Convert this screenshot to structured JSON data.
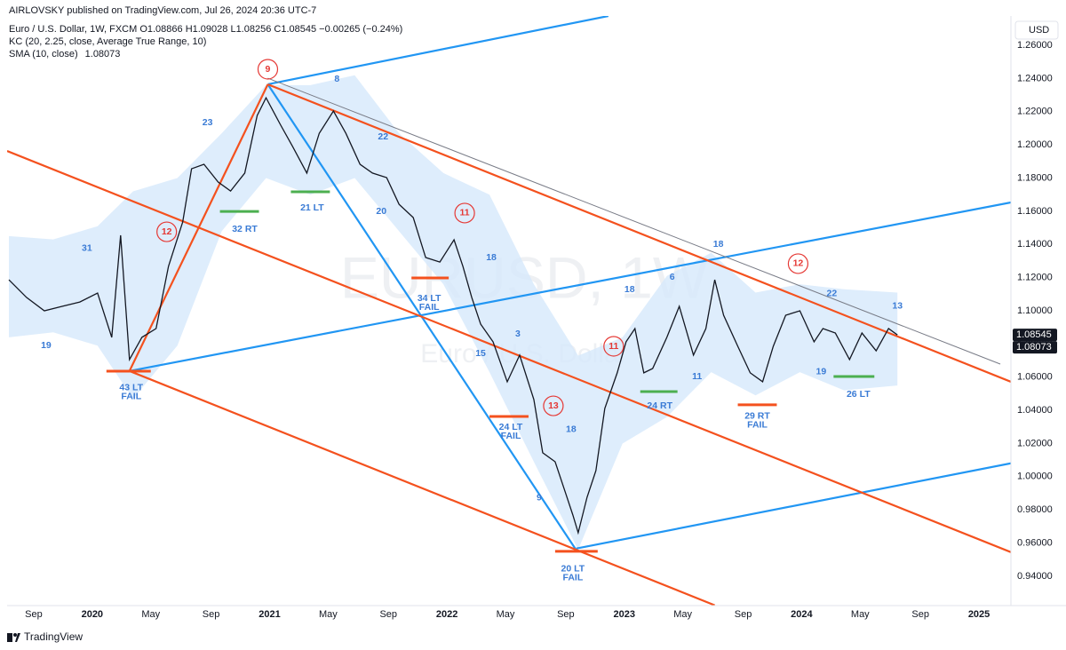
{
  "header": {
    "published": "AIRLOVSKY published on TradingView.com, Jul 26, 2024 20:36 UTC-7",
    "symbol_line": "Euro / U.S. Dollar, 1W, FXCM  O1.08866 H1.09028 L1.08256 C1.08545 −0.00265 (−0.24%)",
    "kc_line": "KC (20, 2.25, close, Average True Range, 10)",
    "sma_line": "SMA (10, close)"
  },
  "footer": "TradingView",
  "chart_data": {
    "type": "line",
    "watermark": {
      "symbol": "EURUSD, 1W",
      "description": "Euro / U.S. Dollar"
    },
    "currency": "USD",
    "sma_last": 1.08073,
    "xlim": [
      2019.52,
      2025.18
    ],
    "ylim": [
      0.9223,
      1.2777
    ],
    "grid": false,
    "xticks": [
      {
        "value": 2019.67,
        "label": "Sep"
      },
      2020,
      {
        "value": 2020.33,
        "label": "May"
      },
      {
        "value": 2020.67,
        "label": "Sep"
      },
      2021,
      {
        "value": 2021.33,
        "label": "May"
      },
      {
        "value": 2021.67,
        "label": "Sep"
      },
      2022,
      {
        "value": 2022.33,
        "label": "May"
      },
      {
        "value": 2022.67,
        "label": "Sep"
      },
      2023,
      {
        "value": 2023.33,
        "label": "May"
      },
      {
        "value": 2023.67,
        "label": "Sep"
      },
      2024,
      {
        "value": 2024.33,
        "label": "May"
      },
      {
        "value": 2024.67,
        "label": "Sep"
      },
      2025
    ],
    "yticks": [
      {
        "value": 0.94,
        "label": "0.94000"
      },
      {
        "value": 0.96,
        "label": "0.96000"
      },
      {
        "value": 0.98,
        "label": "0.98000"
      },
      {
        "value": 1.0,
        "label": "1.00000"
      },
      {
        "value": 1.02,
        "label": "1.02000"
      },
      {
        "value": 1.04,
        "label": "1.04000"
      },
      {
        "value": 1.06,
        "label": "1.06000"
      },
      {
        "value": 1.08,
        "label": "1.08000"
      },
      {
        "value": 1.1,
        "label": "1.10000"
      },
      {
        "value": 1.12,
        "label": "1.12000"
      },
      {
        "value": 1.14,
        "label": "1.14000"
      },
      {
        "value": 1.16,
        "label": "1.16000"
      },
      {
        "value": 1.18,
        "label": "1.18000"
      },
      {
        "value": 1.2,
        "label": "1.20000"
      },
      {
        "value": 1.22,
        "label": "1.22000"
      },
      {
        "value": 1.24,
        "label": "1.24000"
      },
      {
        "value": 1.26,
        "label": "1.26000"
      }
    ],
    "x": [
      2019.53,
      2019.63,
      2019.73,
      2019.83,
      2019.93,
      2020.03,
      2020.11,
      2020.16,
      2020.21,
      2020.28,
      2020.36,
      2020.43,
      2020.51,
      2020.56,
      2020.63,
      2020.71,
      2020.78,
      2020.86,
      2020.93,
      2020.98,
      2021.06,
      2021.13,
      2021.21,
      2021.28,
      2021.36,
      2021.43,
      2021.51,
      2021.58,
      2021.66,
      2021.73,
      2021.81,
      2021.88,
      2021.96,
      2022.04,
      2022.09,
      2022.14,
      2022.19,
      2022.26,
      2022.34,
      2022.41,
      2022.49,
      2022.54,
      2022.61,
      2022.66,
      2022.71,
      2022.74,
      2022.79,
      2022.84,
      2022.89,
      2022.96,
      2023.01,
      2023.06,
      2023.11,
      2023.16,
      2023.24,
      2023.31,
      2023.39,
      2023.46,
      2023.51,
      2023.56,
      2023.64,
      2023.71,
      2023.78,
      2023.84,
      2023.91,
      2023.99,
      2024.07,
      2024.12,
      2024.19,
      2024.27,
      2024.34,
      2024.42,
      2024.49,
      2024.54
    ],
    "series": [
      {
        "color": "#131722",
        "values": [
          1.1187,
          1.108,
          1.1,
          1.1027,
          1.1053,
          1.1107,
          1.084,
          1.1455,
          1.0706,
          1.084,
          1.0893,
          1.1268,
          1.1535,
          1.1856,
          1.1883,
          1.1776,
          1.1722,
          1.183,
          1.2177,
          1.2284,
          1.2124,
          1.199,
          1.183,
          1.207,
          1.2204,
          1.207,
          1.1883,
          1.183,
          1.1803,
          1.1642,
          1.1562,
          1.1321,
          1.1294,
          1.1428,
          1.1268,
          1.108,
          1.092,
          1.0813,
          1.0572,
          1.0733,
          1.0465,
          1.0144,
          1.009,
          0.993,
          0.9769,
          0.9662,
          0.9876,
          1.0037,
          1.0411,
          1.0626,
          1.0813,
          1.0893,
          1.0626,
          1.0652,
          1.084,
          1.1027,
          1.0733,
          1.0893,
          1.1187,
          1.0973,
          1.0786,
          1.0626,
          1.0572,
          1.0786,
          1.0973,
          1.1,
          1.0813,
          1.0893,
          1.0866,
          1.0706,
          1.0866,
          1.0759,
          1.0893,
          1.08545
        ]
      }
    ],
    "kc": {
      "color": "#d6e9fb",
      "x": [
        2019.53,
        2019.78,
        2020.03,
        2020.23,
        2020.48,
        2020.73,
        2020.98,
        2021.23,
        2021.48,
        2021.73,
        2021.98,
        2022.24,
        2022.49,
        2022.74,
        2022.99,
        2023.24,
        2023.49,
        2023.74,
        2023.99,
        2024.24,
        2024.54
      ],
      "upper": [
        1.145,
        1.143,
        1.151,
        1.172,
        1.18,
        1.207,
        1.236,
        1.236,
        1.242,
        1.207,
        1.183,
        1.17,
        1.116,
        1.073,
        1.084,
        1.121,
        1.135,
        1.111,
        1.116,
        1.113,
        1.111
      ],
      "lower": [
        1.084,
        1.087,
        1.079,
        1.047,
        1.079,
        1.148,
        1.18,
        1.17,
        1.18,
        1.148,
        1.116,
        1.063,
        1.009,
        0.956,
        1.02,
        1.036,
        1.063,
        1.049,
        1.063,
        1.052,
        1.055
      ]
    },
    "drawings": [
      {
        "color": "#2196f3",
        "x": [
          2020.99,
          2022.91
        ],
        "y": [
          1.2365,
          1.2777
        ]
      },
      {
        "color": "#2196f3",
        "x": [
          2020.21,
          2025.18
        ],
        "y": [
          1.0637,
          1.1653
        ]
      },
      {
        "color": "#2196f3",
        "x": [
          2020.99,
          2022.73
        ],
        "y": [
          1.2365,
          0.9556
        ]
      },
      {
        "color": "#2196f3",
        "x": [
          2022.73,
          2025.18
        ],
        "y": [
          0.9567,
          1.0081
        ]
      },
      {
        "color": "#f4511e",
        "x": [
          2020.21,
          2020.99
        ],
        "y": [
          1.0637,
          1.2365
        ]
      },
      {
        "color": "#f4511e",
        "x": [
          2020.99,
          2025.18
        ],
        "y": [
          1.2365,
          1.0572
        ]
      },
      {
        "color": "#f4511e",
        "x": [
          2019.52,
          2025.18
        ],
        "y": [
          1.1963,
          0.9545
        ]
      },
      {
        "color": "#f4511e",
        "x": [
          2020.21,
          2023.51
        ],
        "y": [
          1.0637,
          0.9225
        ]
      }
    ],
    "guide": {
      "color": "#787b86",
      "x": [
        2020.99,
        2025.12
      ],
      "y": [
        1.2402,
        1.0679
      ]
    },
    "levels": [
      {
        "color": "#f4511e",
        "x": [
          2020.08,
          2020.33
        ],
        "y": 1.0636
      },
      {
        "color": "#4caf50",
        "x": [
          2020.72,
          2020.94
        ],
        "y": 1.1599
      },
      {
        "color": "#4caf50",
        "x": [
          2021.12,
          2021.34
        ],
        "y": 1.1717
      },
      {
        "color": "#f4511e",
        "x": [
          2021.8,
          2022.01
        ],
        "y": 1.1198
      },
      {
        "color": "#f4511e",
        "x": [
          2022.24,
          2022.46
        ],
        "y": 1.0363
      },
      {
        "color": "#f4511e",
        "x": [
          2022.61,
          2022.85
        ],
        "y": 0.955
      },
      {
        "color": "#4caf50",
        "x": [
          2023.09,
          2023.3
        ],
        "y": 1.0513
      },
      {
        "color": "#f4511e",
        "x": [
          2023.64,
          2023.86
        ],
        "y": 1.0433
      },
      {
        "color": "#4caf50",
        "x": [
          2024.18,
          2024.41
        ],
        "y": 1.0604
      }
    ],
    "annotation_color": "#3a7bd5",
    "circle_color": "#e53935",
    "annotations": [
      {
        "text": "9",
        "x": 2020.99,
        "y": 1.2456,
        "circled": true
      },
      {
        "text": "12",
        "x": 2020.42,
        "y": 1.1476,
        "circled": true
      },
      {
        "text": "11",
        "x": 2022.1,
        "y": 1.1589,
        "circled": true
      },
      {
        "text": "13",
        "x": 2022.6,
        "y": 1.0427,
        "circled": true
      },
      {
        "text": "11",
        "x": 2022.94,
        "y": 1.0786,
        "circled": true
      },
      {
        "text": "12",
        "x": 2023.98,
        "y": 1.1284,
        "circled": true
      },
      {
        "text": "23",
        "x": 2020.65,
        "y": 1.2134
      },
      {
        "text": "8",
        "x": 2021.38,
        "y": 1.2397
      },
      {
        "text": "22",
        "x": 2021.64,
        "y": 1.2049
      },
      {
        "text": "20",
        "x": 2021.63,
        "y": 1.1599
      },
      {
        "text": "31",
        "x": 2019.97,
        "y": 1.1375
      },
      {
        "text": "19",
        "x": 2019.74,
        "y": 1.0791
      },
      {
        "text": "32 RT",
        "x": 2020.86,
        "y": 1.1492
      },
      {
        "text": "21 LT",
        "x": 2021.24,
        "y": 1.1621
      },
      {
        "text": [
          "34 LT",
          "FAIL"
        ],
        "x": 2021.9,
        "y": 1.1048
      },
      {
        "text": "18",
        "x": 2022.25,
        "y": 1.1321
      },
      {
        "text": "3",
        "x": 2022.4,
        "y": 1.0861
      },
      {
        "text": "15",
        "x": 2022.19,
        "y": 1.0743
      },
      {
        "text": [
          "24 LT",
          "FAIL"
        ],
        "x": 2022.36,
        "y": 1.0272
      },
      {
        "text": "18",
        "x": 2022.7,
        "y": 1.0283
      },
      {
        "text": "9",
        "x": 2022.52,
        "y": 0.9871
      },
      {
        "text": [
          "20 LT",
          "FAIL"
        ],
        "x": 2022.71,
        "y": 0.9416
      },
      {
        "text": [
          "43 LT",
          "FAIL"
        ],
        "x": 2020.22,
        "y": 1.0508
      },
      {
        "text": "18",
        "x": 2023.03,
        "y": 1.1128
      },
      {
        "text": "6",
        "x": 2023.27,
        "y": 1.1203
      },
      {
        "text": "11",
        "x": 2023.41,
        "y": 1.0604
      },
      {
        "text": "24 RT",
        "x": 2023.2,
        "y": 1.0427
      },
      {
        "text": "18",
        "x": 2023.53,
        "y": 1.1401
      },
      {
        "text": [
          "29 RT",
          "FAIL"
        ],
        "x": 2023.75,
        "y": 1.0337
      },
      {
        "text": "22",
        "x": 2024.17,
        "y": 1.1102
      },
      {
        "text": "19",
        "x": 2024.11,
        "y": 1.0631
      },
      {
        "text": "26 LT",
        "x": 2024.32,
        "y": 1.0497
      },
      {
        "text": "13",
        "x": 2024.54,
        "y": 1.1027
      }
    ]
  }
}
